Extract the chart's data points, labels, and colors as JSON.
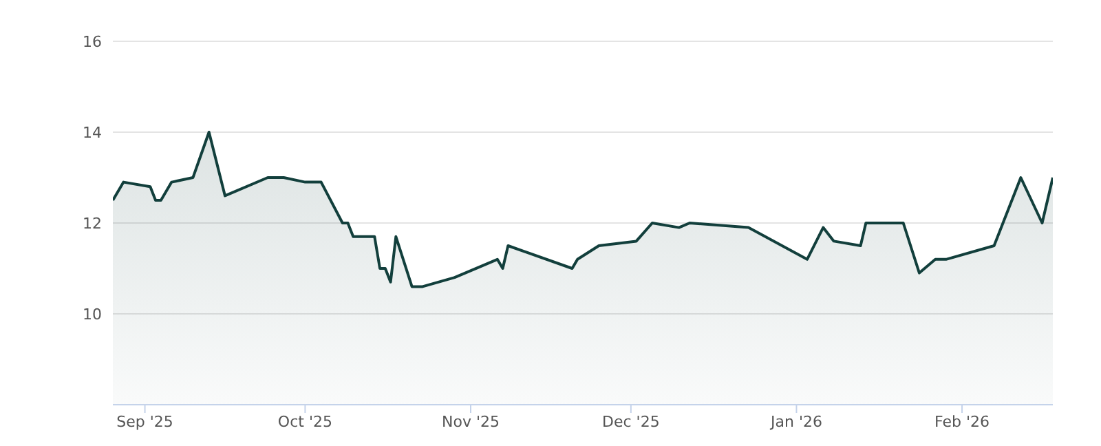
{
  "chart_data": {
    "type": "area",
    "color": "#123f3c",
    "x": [
      "2025-08-26",
      "2025-08-28",
      "2025-09-02",
      "2025-09-03",
      "2025-09-04",
      "2025-09-06",
      "2025-09-10",
      "2025-09-13",
      "2025-09-16",
      "2025-09-24",
      "2025-09-27",
      "2025-10-01",
      "2025-10-04",
      "2025-10-08",
      "2025-10-09",
      "2025-10-10",
      "2025-10-14",
      "2025-10-15",
      "2025-10-16",
      "2025-10-17",
      "2025-10-18",
      "2025-10-21",
      "2025-10-23",
      "2025-10-29",
      "2025-11-06",
      "2025-11-07",
      "2025-11-08",
      "2025-11-20",
      "2025-11-21",
      "2025-11-25",
      "2025-12-02",
      "2025-12-05",
      "2025-12-10",
      "2025-12-12",
      "2025-12-23",
      "2026-01-03",
      "2026-01-06",
      "2026-01-08",
      "2026-01-13",
      "2026-01-14",
      "2026-01-21",
      "2026-01-24",
      "2026-01-27",
      "2026-01-29",
      "2026-02-07",
      "2026-02-12",
      "2026-02-16",
      "2026-02-18"
    ],
    "values": [
      12.5,
      12.9,
      12.8,
      12.5,
      12.5,
      12.9,
      13.0,
      14.0,
      12.6,
      13.0,
      13.0,
      12.9,
      12.9,
      12.0,
      12.0,
      11.7,
      11.7,
      11.0,
      11.0,
      10.7,
      11.7,
      10.6,
      10.6,
      10.8,
      11.2,
      11.0,
      11.5,
      11.0,
      11.2,
      11.5,
      11.6,
      12.0,
      11.9,
      12.0,
      11.9,
      11.2,
      11.9,
      11.6,
      11.5,
      12.0,
      12.0,
      10.9,
      11.2,
      11.2,
      11.5,
      13.0,
      12.0,
      13.0
    ],
    "xlim": [
      "2025-08-26",
      "2026-02-18"
    ],
    "xticks": [
      {
        "value": "2025-09-01",
        "label": "Sep '25"
      },
      {
        "value": "2025-10-01",
        "label": "Oct '25"
      },
      {
        "value": "2025-11-01",
        "label": "Nov '25"
      },
      {
        "value": "2025-12-01",
        "label": "Dec '25"
      },
      {
        "value": "2026-01-01",
        "label": "Jan '26"
      },
      {
        "value": "2026-02-01",
        "label": "Feb '26"
      }
    ],
    "ylim": [
      8,
      16
    ],
    "yticks": [
      10,
      12,
      14,
      16
    ],
    "grid": "y"
  }
}
